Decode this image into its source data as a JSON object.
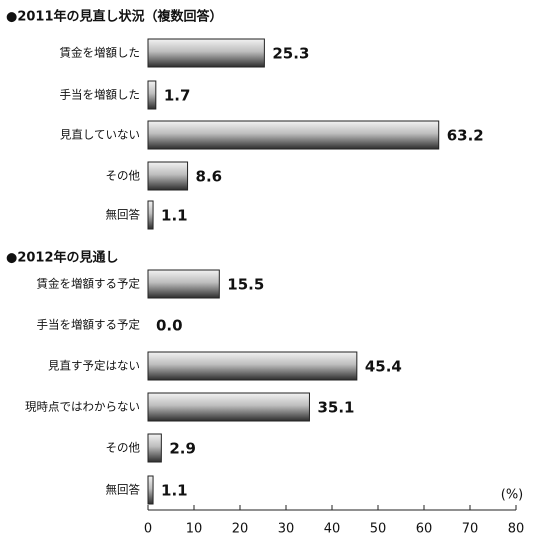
{
  "chart_data": [
    {
      "type": "hbar",
      "title": "●2011年の見直し状況（複数回答）",
      "categories": [
        "賃金を増額した",
        "手当を増額した",
        "見直していない",
        "その他",
        "無回答"
      ],
      "values": [
        25.3,
        1.7,
        63.2,
        8.6,
        1.1
      ],
      "value_labels": [
        "25.3",
        "1.7",
        "63.2",
        "8.6",
        "1.1"
      ],
      "xlim": [
        0,
        80
      ]
    },
    {
      "type": "hbar",
      "title": "●2012年の見通し",
      "categories": [
        "賃金を増額する予定",
        "手当を増額する予定",
        "見直す予定はない",
        "現時点ではわからない",
        "その他",
        "無回答"
      ],
      "values": [
        15.5,
        0,
        45.4,
        35.1,
        2.9,
        1.1
      ],
      "value_labels": [
        "15.5",
        "0.0",
        "45.4",
        "35.1",
        "2.9",
        "1.1"
      ],
      "xlim": [
        0,
        80
      ],
      "xticks": [
        0,
        10,
        20,
        30,
        40,
        50,
        60,
        70,
        80
      ],
      "unit": "(%)"
    }
  ]
}
